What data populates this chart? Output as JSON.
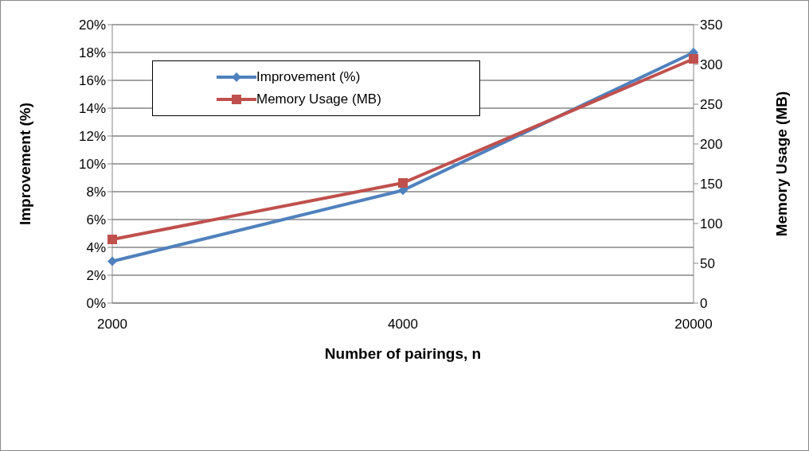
{
  "chart_data": {
    "type": "line",
    "xlabel": "Number of pairings,  n",
    "ylabel": "Improvement (%)",
    "y2label": "Memory Usage (MB)",
    "categories": [
      "2000",
      "4000",
      "20000"
    ],
    "series": [
      {
        "name": "Improvement (%)",
        "color": "#4f81bd",
        "values": [
          3,
          8.1,
          18
        ],
        "marker": "diamond"
      },
      {
        "name": "Memory Usage (MB)",
        "color": "#c0504d",
        "values": [
          80,
          151,
          307
        ],
        "axis": "y2",
        "marker": "square"
      }
    ],
    "ylim": [
      0,
      20
    ],
    "yticks": [
      {
        "value": 0,
        "label": "0%"
      },
      {
        "value": 2,
        "label": "2%"
      },
      {
        "value": 4,
        "label": "4%"
      },
      {
        "value": 6,
        "label": "6%"
      },
      {
        "value": 8,
        "label": "8%"
      },
      {
        "value": 10,
        "label": "10%"
      },
      {
        "value": 12,
        "label": "12%"
      },
      {
        "value": 14,
        "label": "14%"
      },
      {
        "value": 16,
        "label": "16%"
      },
      {
        "value": 18,
        "label": "18%"
      },
      {
        "value": 20,
        "label": "20%"
      }
    ],
    "y2lim": [
      0,
      350
    ],
    "y2ticks": [
      0,
      50,
      100,
      150,
      200,
      250,
      300,
      350
    ],
    "grid": "y",
    "legend": "top left",
    "line_style": "solid"
  }
}
